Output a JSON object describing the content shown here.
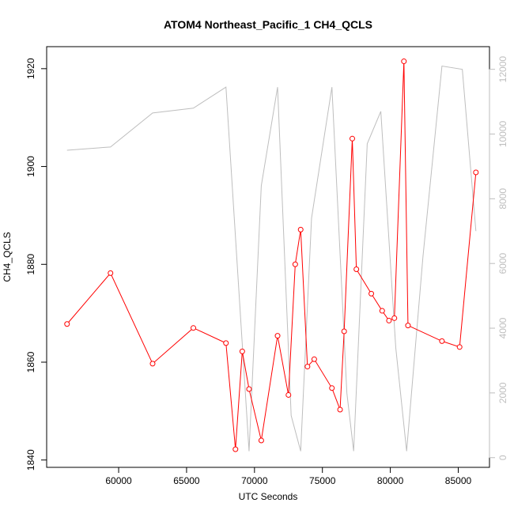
{
  "chart_data": {
    "type": "line",
    "title": "ATOM4 Northeast_Pacific_1 CH4_QCLS",
    "xlabel": "UTC Seconds",
    "ylabel": "CH4_QCLS",
    "xlim": [
      54700,
      87300
    ],
    "ylim": [
      1838.5,
      1924.5
    ],
    "y2lim": [
      -300,
      12700
    ],
    "x_ticks": [
      60000,
      65000,
      70000,
      75000,
      80000,
      85000
    ],
    "y_ticks": [
      1840,
      1860,
      1880,
      1900,
      1920
    ],
    "y2_ticks": [
      0,
      2000,
      4000,
      6000,
      8000,
      10000,
      12000
    ],
    "series": [
      {
        "axis": "left",
        "color": "#ff0000",
        "marker": "circle",
        "x": [
          56200,
          59400,
          62500,
          65500,
          67900,
          68600,
          69100,
          69600,
          70500,
          71700,
          72500,
          73000,
          73400,
          73900,
          74400,
          75700,
          76300,
          76600,
          77200,
          77500,
          78600,
          79400,
          79900,
          80300,
          81000,
          81300,
          83800,
          85100,
          86300
        ],
        "y": [
          1867.8,
          1878.2,
          1859.7,
          1867.0,
          1863.9,
          1842.2,
          1862.2,
          1854.5,
          1844.0,
          1865.4,
          1853.3,
          1880.0,
          1887.1,
          1859.1,
          1860.6,
          1854.7,
          1850.3,
          1866.3,
          1905.7,
          1879.0,
          1874.0,
          1870.5,
          1868.5,
          1869.0,
          1921.5,
          1867.5,
          1864.3,
          1863.1,
          1898.8
        ]
      },
      {
        "axis": "right",
        "color": "#bebebe",
        "marker": "none",
        "x": [
          56200,
          59400,
          62500,
          65500,
          67900,
          69600,
          70500,
          71700,
          72700,
          73400,
          74200,
          75700,
          76800,
          77300,
          78300,
          79300,
          80400,
          81200,
          82400,
          83800,
          85300,
          86300
        ],
        "y": [
          9500,
          9600,
          10650,
          10800,
          11450,
          200,
          8400,
          11450,
          1300,
          200,
          7400,
          11450,
          2000,
          200,
          9700,
          10700,
          3400,
          200,
          6200,
          12100,
          12000,
          7000
        ]
      }
    ]
  }
}
